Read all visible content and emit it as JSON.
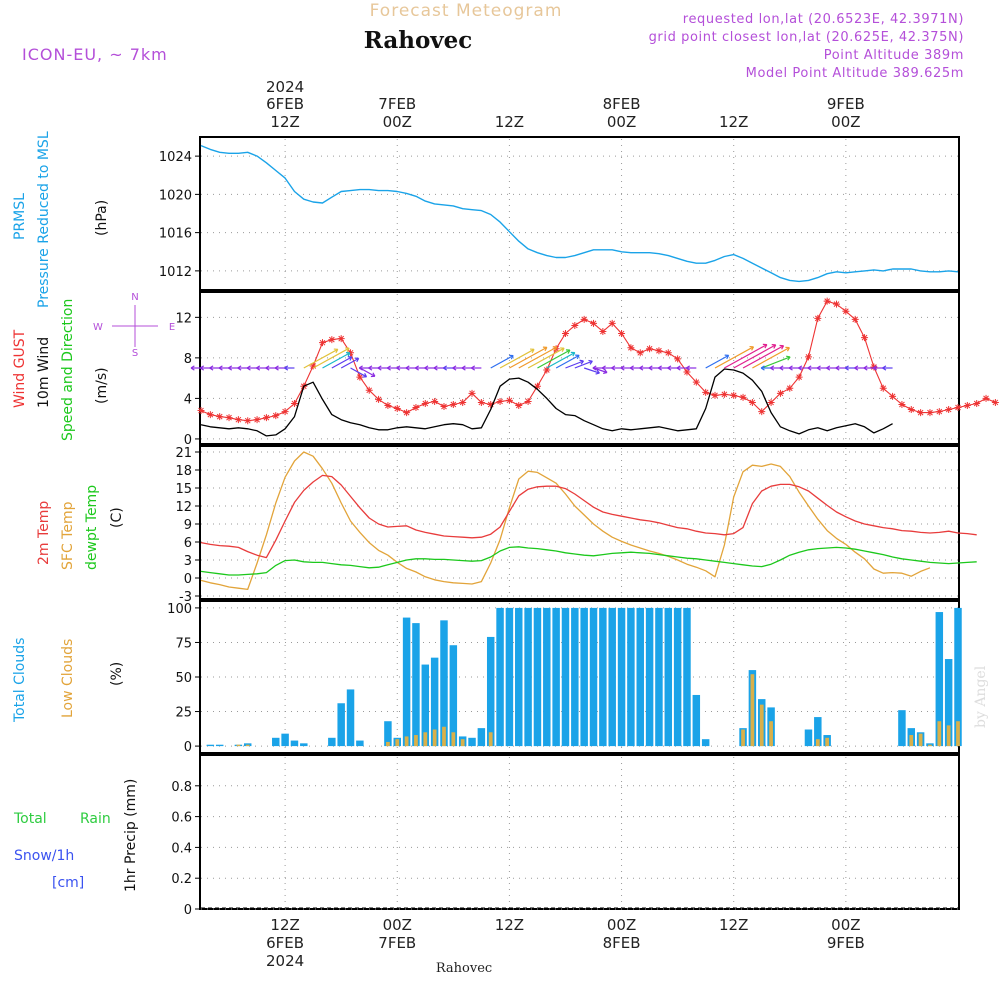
{
  "header": {
    "product": "Forecast Meteogram",
    "location": "Rahovec",
    "model": "ICON-EU, ~ 7km",
    "requested": "requested lon,lat (20.6523E, 42.3971N)",
    "grid_point": "grid point closest lon,lat (20.625E, 42.375N)",
    "point_altitude": "Point Altitude 389m",
    "model_altitude": "Model Point Altitude 389.625m",
    "footer_location": "Rahovec",
    "watermark": "by Angel"
  },
  "time_axis": {
    "top_year": "2024",
    "labels": [
      {
        "hour": 9,
        "day": "6FEB",
        "time": "12Z",
        "year": "2024"
      },
      {
        "hour": 21,
        "day": "7FEB",
        "time": "00Z",
        "year": ""
      },
      {
        "hour": 33,
        "day": "",
        "time": "12Z",
        "year": ""
      },
      {
        "hour": 45,
        "day": "8FEB",
        "time": "00Z",
        "year": ""
      },
      {
        "hour": 57,
        "day": "",
        "time": "12Z",
        "year": ""
      },
      {
        "hour": 69,
        "day": "9FEB",
        "time": "00Z",
        "year": ""
      }
    ]
  },
  "panels": {
    "pressure": {
      "label1": "PRMSL",
      "label2": "Pressure Reduced to MSL",
      "unit": "(hPa)"
    },
    "wind": {
      "label_gust": "Wind GUST",
      "label_wind": "10m Wind",
      "label_dir": "Speed and Direction",
      "unit": "(m/s)",
      "compass_n": "N",
      "compass_s": "S",
      "compass_w": "W",
      "compass_e": "E"
    },
    "temp": {
      "label1": "2m Temp",
      "label2": "SFC Temp",
      "label3": "dewpt Temp",
      "unit": "(C)"
    },
    "clouds": {
      "label1": "Total Clouds",
      "label2": "Low Clouds",
      "unit": "(%)"
    },
    "precip": {
      "label_total": "Total",
      "label_rain": "Rain",
      "label_snow": "Snow/1h",
      "label_cm": "[cm]",
      "unit": "1hr Precip (mm)"
    }
  },
  "colors": {
    "pressure": "#1aa3e8",
    "gust": "#ee3333",
    "wind": "#000000",
    "t2m": "#e83c3c",
    "tsfc": "#e2a43a",
    "dewpt": "#1cc81c",
    "total_cloud": "#1aa3e8",
    "low_cloud": "#d9b04a",
    "purple": "#b44fd9",
    "rain_label": "#2ecc40",
    "snow_label": "#3a52f0"
  },
  "chart_data": [
    {
      "type": "line",
      "title": "PRMSL Pressure Reduced to MSL",
      "ylabel": "hPa",
      "ylim": [
        1010,
        1026
      ],
      "yticks": [
        1012,
        1016,
        1020,
        1024
      ],
      "x_start_hour": 0,
      "x_step_hours": 1,
      "series": [
        {
          "name": "PRMSL",
          "values": [
            1025.1,
            1024.7,
            1024.4,
            1024.3,
            1024.3,
            1024.4,
            1024.0,
            1023.3,
            1022.5,
            1021.7,
            1020.3,
            1019.5,
            1019.2,
            1019.1,
            1019.7,
            1020.3,
            1020.4,
            1020.5,
            1020.5,
            1020.4,
            1020.4,
            1020.3,
            1020.1,
            1019.8,
            1019.3,
            1019.0,
            1018.9,
            1018.8,
            1018.5,
            1018.4,
            1018.3,
            1017.9,
            1017.1,
            1016.1,
            1015.1,
            1014.3,
            1013.9,
            1013.6,
            1013.4,
            1013.4,
            1013.6,
            1013.9,
            1014.2,
            1014.2,
            1014.2,
            1014.0,
            1013.9,
            1013.9,
            1013.9,
            1013.8,
            1013.6,
            1013.3,
            1013.0,
            1012.8,
            1012.8,
            1013.1,
            1013.5,
            1013.7,
            1013.3,
            1012.8,
            1012.3,
            1011.8,
            1011.3,
            1011.0,
            1010.9,
            1011.0,
            1011.3,
            1011.7,
            1011.9,
            1011.8,
            1011.9,
            1012.0,
            1012.1,
            1012.0,
            1012.2,
            1012.2,
            1012.2,
            1012.0,
            1011.9,
            1011.9,
            1012.0,
            1011.9
          ]
        }
      ]
    },
    {
      "type": "line",
      "title": "Wind GUST / 10m Wind Speed and Direction",
      "ylabel": "m/s",
      "ylim": [
        -0.5,
        14.5
      ],
      "yticks": [
        0,
        4,
        8,
        12
      ],
      "x_start_hour": 0,
      "x_step_hours": 1,
      "series": [
        {
          "name": "Wind GUST",
          "values": [
            2.8,
            2.4,
            2.2,
            2.1,
            1.9,
            1.8,
            1.9,
            2.1,
            2.3,
            2.7,
            3.5,
            5.2,
            7.2,
            9.5,
            9.8,
            9.9,
            8.5,
            6.1,
            4.8,
            3.9,
            3.3,
            3.0,
            2.6,
            3.1,
            3.5,
            3.7,
            3.2,
            3.4,
            3.6,
            4.5,
            3.6,
            3.4,
            3.7,
            3.8,
            3.3,
            3.7,
            5.2,
            6.8,
            8.9,
            10.4,
            11.2,
            11.8,
            11.4,
            10.6,
            11.4,
            10.4,
            9.0,
            8.5,
            8.9,
            8.7,
            8.5,
            7.9,
            6.6,
            5.6,
            4.6,
            4.3,
            4.4,
            4.3,
            4.1,
            3.6,
            2.7,
            3.6,
            4.5,
            5.0,
            6.1,
            8.1,
            11.9,
            13.6,
            13.3,
            12.6,
            11.8,
            10.0,
            7.1,
            5.0,
            4.2,
            3.4,
            2.9,
            2.6,
            2.6,
            2.7,
            2.9,
            3.1,
            3.3,
            3.5,
            4.0,
            3.6
          ]
        },
        {
          "name": "10m Wind",
          "values": [
            1.4,
            1.2,
            1.1,
            1.0,
            1.1,
            1.0,
            0.8,
            0.3,
            0.4,
            1.0,
            2.2,
            5.2,
            5.6,
            3.9,
            2.4,
            1.9,
            1.6,
            1.4,
            1.1,
            0.9,
            0.9,
            1.1,
            1.2,
            1.1,
            1.0,
            1.2,
            1.4,
            1.5,
            1.4,
            1.0,
            1.1,
            2.9,
            5.2,
            5.9,
            6.0,
            5.6,
            4.9,
            4.0,
            3.0,
            2.4,
            2.3,
            1.8,
            1.4,
            1.0,
            0.8,
            1.0,
            0.9,
            1.0,
            1.1,
            1.2,
            1.0,
            0.8,
            0.9,
            1.0,
            3.0,
            6.1,
            6.9,
            6.8,
            6.5,
            5.8,
            4.7,
            2.6,
            1.2,
            0.8,
            0.5,
            0.9,
            1.1,
            0.8,
            1.1,
            1.3,
            1.5,
            1.2,
            0.6,
            1.0,
            1.5
          ]
        }
      ]
    },
    {
      "type": "line",
      "title": "2m Temp / SFC Temp / dewpt Temp",
      "ylabel": "C",
      "ylim": [
        -3.5,
        22
      ],
      "yticks": [
        -3,
        0,
        3,
        6,
        9,
        12,
        15,
        18,
        21
      ],
      "x_start_hour": 0,
      "x_step_hours": 1,
      "series": [
        {
          "name": "2m Temp",
          "values": [
            5.9,
            5.6,
            5.4,
            5.3,
            5.1,
            4.4,
            3.8,
            3.4,
            6.3,
            9.5,
            12.6,
            14.6,
            16.0,
            17.1,
            16.9,
            15.5,
            13.6,
            11.7,
            10.0,
            9.0,
            8.5,
            8.6,
            8.7,
            8.0,
            7.6,
            7.3,
            7.0,
            6.9,
            6.8,
            6.7,
            6.8,
            7.3,
            8.5,
            11.1,
            13.7,
            14.8,
            15.2,
            15.3,
            15.3,
            14.9,
            14.0,
            12.9,
            11.8,
            11.0,
            10.6,
            10.3,
            10.0,
            9.7,
            9.5,
            9.2,
            8.8,
            8.4,
            8.2,
            7.8,
            7.5,
            7.4,
            7.2,
            7.4,
            8.4,
            12.4,
            14.5,
            15.3,
            15.6,
            15.6,
            15.2,
            14.5,
            13.3,
            12.1,
            11.0,
            10.2,
            9.5,
            9.0,
            8.7,
            8.4,
            8.2,
            7.9,
            7.8,
            7.6,
            7.5,
            7.6,
            7.8,
            7.5,
            7.4,
            7.2
          ]
        },
        {
          "name": "SFC Temp",
          "values": [
            -0.4,
            -0.8,
            -1.1,
            -1.5,
            -1.7,
            -1.9,
            2.5,
            7.2,
            12.5,
            16.8,
            19.5,
            21.0,
            20.3,
            18.2,
            15.8,
            12.5,
            9.5,
            7.6,
            5.9,
            4.6,
            3.8,
            2.6,
            1.6,
            1.0,
            0.2,
            -0.3,
            -0.6,
            -0.8,
            -0.9,
            -1.0,
            -0.6,
            2.5,
            6.4,
            11.7,
            16.5,
            17.8,
            17.6,
            16.7,
            15.8,
            14.0,
            12.0,
            10.5,
            9.0,
            7.8,
            6.8,
            6.1,
            5.5,
            5.0,
            4.5,
            4.1,
            3.6,
            3.0,
            2.3,
            1.8,
            1.2,
            0.2,
            5.5,
            13.5,
            17.7,
            18.8,
            18.6,
            19.0,
            18.6,
            16.9,
            14.3,
            12.0,
            9.8,
            7.9,
            6.6,
            5.6,
            4.3,
            3.2,
            1.5,
            0.8,
            0.9,
            0.8,
            0.3,
            1.1,
            1.7
          ]
        },
        {
          "name": "dewpt Temp",
          "values": [
            1.1,
            0.9,
            0.7,
            0.5,
            0.5,
            0.6,
            0.7,
            0.9,
            2.1,
            2.9,
            3.0,
            2.7,
            2.6,
            2.6,
            2.4,
            2.2,
            2.1,
            1.9,
            1.7,
            1.8,
            2.2,
            2.6,
            3.0,
            3.2,
            3.2,
            3.1,
            3.1,
            3.0,
            2.9,
            2.8,
            2.9,
            3.5,
            4.5,
            5.1,
            5.2,
            5.0,
            4.9,
            4.7,
            4.5,
            4.2,
            4.0,
            3.8,
            3.7,
            3.9,
            4.1,
            4.2,
            4.3,
            4.2,
            4.1,
            3.9,
            3.7,
            3.5,
            3.3,
            3.2,
            3.0,
            2.8,
            2.6,
            2.4,
            2.2,
            2.0,
            1.9,
            2.3,
            3.0,
            3.8,
            4.3,
            4.7,
            4.9,
            5.0,
            5.1,
            5.0,
            4.8,
            4.5,
            4.2,
            3.9,
            3.5,
            3.2,
            3.0,
            2.8,
            2.6,
            2.5,
            2.4,
            2.5,
            2.6,
            2.7
          ]
        }
      ]
    },
    {
      "type": "bar",
      "title": "Total Clouds / Low Clouds",
      "ylabel": "%",
      "ylim": [
        -5,
        105
      ],
      "yticks": [
        0,
        25,
        50,
        75,
        100
      ],
      "x_start_hour": 0,
      "x_step_hours": 1,
      "series": [
        {
          "name": "Total Clouds",
          "values": [
            0,
            1,
            1,
            0,
            1,
            2,
            0,
            0,
            6,
            9,
            4,
            2,
            0,
            0,
            6,
            31,
            41,
            4,
            0,
            0,
            18,
            6,
            93,
            89,
            59,
            64,
            91,
            73,
            7,
            6,
            13,
            79,
            100,
            100,
            100,
            100,
            100,
            100,
            100,
            100,
            100,
            100,
            100,
            100,
            100,
            100,
            100,
            100,
            100,
            100,
            100,
            100,
            100,
            37,
            5,
            0,
            0,
            0,
            13,
            55,
            34,
            28,
            0,
            0,
            0,
            12,
            21,
            8,
            0,
            0,
            0,
            0,
            0,
            0,
            0,
            26,
            13,
            10,
            2,
            97,
            63,
            100
          ]
        },
        {
          "name": "Low Clouds",
          "values": [
            0,
            0,
            0,
            0,
            1,
            1,
            0,
            0,
            0,
            0,
            0,
            0,
            0,
            0,
            0,
            0,
            0,
            0,
            0,
            0,
            3,
            5,
            7,
            8,
            10,
            12,
            14,
            10,
            5,
            0,
            0,
            10,
            0,
            0,
            0,
            0,
            0,
            0,
            0,
            0,
            0,
            0,
            0,
            0,
            0,
            0,
            0,
            0,
            0,
            0,
            0,
            0,
            0,
            0,
            0,
            0,
            0,
            0,
            12,
            52,
            30,
            18,
            0,
            0,
            0,
            0,
            5,
            6,
            0,
            0,
            0,
            0,
            0,
            0,
            0,
            0,
            8,
            9,
            1,
            18,
            15,
            18
          ]
        }
      ]
    },
    {
      "type": "bar",
      "title": "1hr Precip",
      "ylabel": "mm",
      "ylim": [
        0,
        1.0
      ],
      "yticks": [
        0,
        0.2,
        0.4,
        0.6,
        0.8
      ],
      "x_start_hour": 0,
      "x_step_hours": 1,
      "series": [
        {
          "name": "Total Rain",
          "values": [
            0,
            0,
            0,
            0,
            0,
            0,
            0,
            0,
            0,
            0,
            0,
            0,
            0,
            0,
            0,
            0,
            0,
            0,
            0,
            0,
            0,
            0,
            0,
            0,
            0,
            0,
            0,
            0,
            0,
            0,
            0,
            0,
            0,
            0,
            0,
            0,
            0,
            0,
            0,
            0,
            0,
            0,
            0,
            0,
            0,
            0,
            0,
            0,
            0,
            0,
            0,
            0,
            0,
            0,
            0,
            0,
            0,
            0,
            0,
            0,
            0,
            0,
            0,
            0,
            0,
            0,
            0,
            0,
            0,
            0,
            0,
            0,
            0,
            0,
            0,
            0,
            0,
            0,
            0,
            0,
            0,
            0
          ]
        }
      ]
    }
  ],
  "wind_dirs": [
    "W",
    "W",
    "W",
    "W",
    "W",
    "W",
    "W",
    "W",
    "W",
    "W",
    "W",
    "SW",
    "SW",
    "SW",
    "SW",
    "SW",
    "NW",
    "NW",
    "W",
    "W",
    "W",
    "W",
    "W",
    "W",
    "W",
    "W",
    "W",
    "W",
    "W",
    "W",
    "W",
    "SW",
    "SW",
    "SW",
    "SW",
    "SW",
    "SW",
    "SW",
    "SW",
    "WSW",
    "WSW",
    "WNW",
    "WNW",
    "W",
    "W",
    "W",
    "W",
    "W",
    "W",
    "W",
    "W",
    "W",
    "W",
    "W",
    "SW",
    "SW",
    "SW",
    "SW",
    "SW",
    "SW",
    "WSW",
    "W",
    "W",
    "W",
    "W",
    "W",
    "W",
    "W",
    "W",
    "W",
    "W",
    "W",
    "W",
    "W",
    "W"
  ]
}
